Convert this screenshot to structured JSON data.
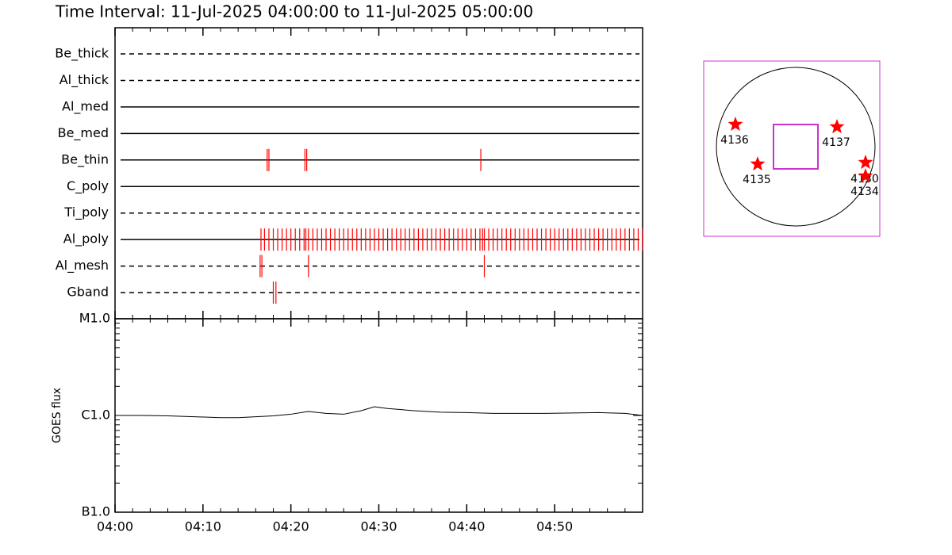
{
  "chart_data": [
    {
      "type": "event",
      "title": "Time Interval: 11-Jul-2025 04:00:00 to 11-Jul-2025 05:00:00",
      "color": "#ff0000",
      "xlim": [
        0,
        60
      ],
      "rows": [
        {
          "label": "Be_thick",
          "dashed": true,
          "events": []
        },
        {
          "label": "Al_thick",
          "dashed": true,
          "events": []
        },
        {
          "label": "Al_med",
          "dashed": false,
          "events": []
        },
        {
          "label": "Be_med",
          "dashed": false,
          "events": []
        },
        {
          "label": "Be_thin",
          "dashed": false,
          "events": [
            17.3,
            17.5,
            21.6,
            21.8,
            41.6
          ]
        },
        {
          "label": "C_poly",
          "dashed": false,
          "events": []
        },
        {
          "label": "Ti_poly",
          "dashed": true,
          "events": []
        },
        {
          "label": "Al_poly",
          "dashed": false,
          "events": [
            16.6,
            17.0,
            17.5,
            18.0,
            18.5,
            19.0,
            19.5,
            20.0,
            20.5,
            21.0,
            21.5,
            21.7,
            22.0,
            22.5,
            23.0,
            23.5,
            24.0,
            24.5,
            25.0,
            25.5,
            26.0,
            26.5,
            27.0,
            27.5,
            28.0,
            28.5,
            29.0,
            29.5,
            30.0,
            30.5,
            31.0,
            31.5,
            32.0,
            32.5,
            33.0,
            33.5,
            34.0,
            34.5,
            35.0,
            35.5,
            36.0,
            36.5,
            37.0,
            37.5,
            38.0,
            38.5,
            39.0,
            39.5,
            40.0,
            40.5,
            41.0,
            41.5,
            41.8,
            42.0,
            42.5,
            43.0,
            43.5,
            44.0,
            44.5,
            45.0,
            45.5,
            46.0,
            46.5,
            47.0,
            47.5,
            48.0,
            48.5,
            49.0,
            49.5,
            50.0,
            50.5,
            51.0,
            51.5,
            52.0,
            52.5,
            53.0,
            53.5,
            54.0,
            54.5,
            55.0,
            55.5,
            56.0,
            56.5,
            57.0,
            57.5,
            58.0,
            58.5,
            59.0,
            59.5,
            60.0
          ]
        },
        {
          "label": "Al_mesh",
          "dashed": true,
          "events": [
            16.5,
            16.7,
            22.0,
            42.0
          ]
        },
        {
          "label": "Gband",
          "dashed": true,
          "events": [
            18.0,
            18.3
          ]
        }
      ]
    },
    {
      "type": "line",
      "y_label": "GOES flux",
      "color": "#000000",
      "log_scale": true,
      "x": [
        0,
        3,
        6,
        9,
        12,
        14,
        16,
        18,
        20,
        22,
        24,
        26,
        28,
        29.5,
        31,
        34,
        37,
        40,
        43,
        46,
        49,
        52,
        55,
        58,
        60
      ],
      "values": [
        1e-06,
        1e-06,
        9.9e-07,
        9.7e-07,
        9.5e-07,
        9.5e-07,
        9.7e-07,
        9.9e-07,
        1.03e-06,
        1.1e-06,
        1.05e-06,
        1.03e-06,
        1.12e-06,
        1.23e-06,
        1.18e-06,
        1.12e-06,
        1.08e-06,
        1.07e-06,
        1.05e-06,
        1.05e-06,
        1.05e-06,
        1.06e-06,
        1.07e-06,
        1.05e-06,
        1e-06
      ],
      "xlim": [
        0,
        60
      ],
      "xticks": [
        {
          "value": 0,
          "label": "04:00"
        },
        {
          "value": 10,
          "label": "04:10"
        },
        {
          "value": 20,
          "label": "04:20"
        },
        {
          "value": 30,
          "label": "04:30"
        },
        {
          "value": 40,
          "label": "04:40"
        },
        {
          "value": 50,
          "label": "04:50"
        }
      ],
      "ylim": [
        1e-07,
        1e-05
      ],
      "yticks": [
        {
          "value": 1e-07,
          "label": "B1.0"
        },
        {
          "value": 1e-06,
          "label": "C1.0"
        },
        {
          "value": 1e-05,
          "label": "M1.0"
        }
      ]
    },
    {
      "type": "map",
      "regions": [
        {
          "label": "4136"
        },
        {
          "label": "4137"
        },
        {
          "label": "4135"
        },
        {
          "label": "4130"
        },
        {
          "label": "4134"
        }
      ]
    }
  ]
}
